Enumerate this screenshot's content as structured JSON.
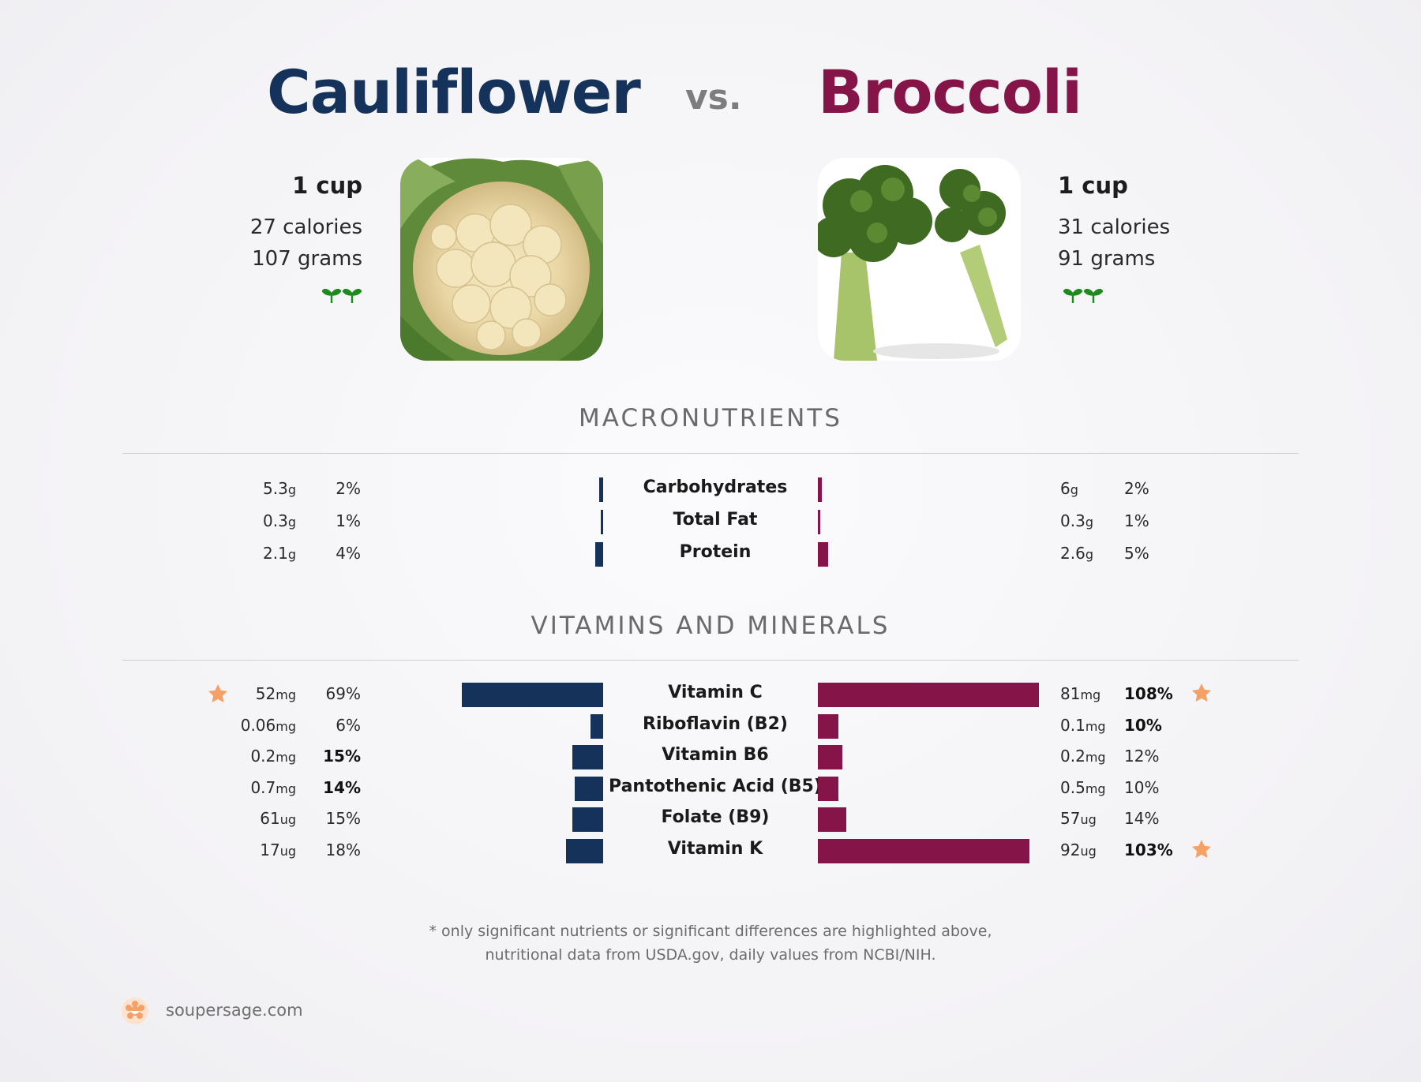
{
  "header": {
    "left_title": "Cauliflower",
    "vs": "vs.",
    "right_title": "Broccoli"
  },
  "colors": {
    "left": "#15335a",
    "right": "#851548",
    "star": "#f4a167",
    "sprout": "#2e8b1f"
  },
  "left_food": {
    "serving": "1 cup",
    "calories": "27 calories",
    "grams": "107 grams",
    "badge_icon": "sprout-icon"
  },
  "right_food": {
    "serving": "1 cup",
    "calories": "31 calories",
    "grams": "91 grams",
    "badge_icon": "sprout-icon"
  },
  "sections": {
    "macros_title": "MACRONUTRIENTS",
    "vitamins_title": "VITAMINS AND MINERALS"
  },
  "chart_data": [
    {
      "type": "bar",
      "title": "MACRONUTRIENTS",
      "categories": [
        "Carbohydrates",
        "Total Fat",
        "Protein"
      ],
      "series": [
        {
          "name": "Cauliflower",
          "amounts": [
            "5.3",
            "0.3",
            "2.1"
          ],
          "units": [
            "g",
            "g",
            "g"
          ],
          "percent_labels": [
            "2%",
            "1%",
            "4%"
          ],
          "values": [
            2,
            1,
            4
          ],
          "bold": [
            false,
            false,
            false
          ],
          "star": [
            false,
            false,
            false
          ]
        },
        {
          "name": "Broccoli",
          "amounts": [
            "6",
            "0.3",
            "2.6"
          ],
          "units": [
            "g",
            "g",
            "g"
          ],
          "percent_labels": [
            "2%",
            "1%",
            "5%"
          ],
          "values": [
            2,
            1,
            5
          ],
          "bold": [
            false,
            false,
            false
          ],
          "star": [
            false,
            false,
            false
          ]
        }
      ],
      "unit": "% daily value"
    },
    {
      "type": "bar",
      "title": "VITAMINS AND MINERALS",
      "categories": [
        "Vitamin C",
        "Riboflavin (B2)",
        "Vitamin B6",
        "Pantothenic Acid (B5)",
        "Folate (B9)",
        "Vitamin K"
      ],
      "series": [
        {
          "name": "Cauliflower",
          "amounts": [
            "52",
            "0.06",
            "0.2",
            "0.7",
            "61",
            "17"
          ],
          "units": [
            "mg",
            "mg",
            "mg",
            "mg",
            "ug",
            "ug"
          ],
          "percent_labels": [
            "69%",
            "6%",
            "15%",
            "14%",
            "15%",
            "18%"
          ],
          "values": [
            69,
            6,
            15,
            14,
            15,
            18
          ],
          "bold": [
            false,
            false,
            true,
            true,
            false,
            false
          ],
          "star": [
            true,
            false,
            false,
            false,
            false,
            false
          ]
        },
        {
          "name": "Broccoli",
          "amounts": [
            "81",
            "0.1",
            "0.2",
            "0.5",
            "57",
            "92"
          ],
          "units": [
            "mg",
            "mg",
            "mg",
            "mg",
            "ug",
            "ug"
          ],
          "percent_labels": [
            "108%",
            "10%",
            "12%",
            "10%",
            "14%",
            "103%"
          ],
          "values": [
            108,
            10,
            12,
            10,
            14,
            103
          ],
          "bold": [
            true,
            true,
            false,
            false,
            false,
            true
          ],
          "star": [
            true,
            false,
            false,
            false,
            false,
            true
          ]
        }
      ],
      "unit": "% daily value"
    }
  ],
  "footnote": {
    "line1": "* only significant nutrients or significant differences are highlighted above,",
    "line2": "nutritional data from USDA.gov, daily values from NCBI/NIH."
  },
  "brand": {
    "text": "soupersage.com",
    "icon": "soupersage-logo-icon"
  }
}
